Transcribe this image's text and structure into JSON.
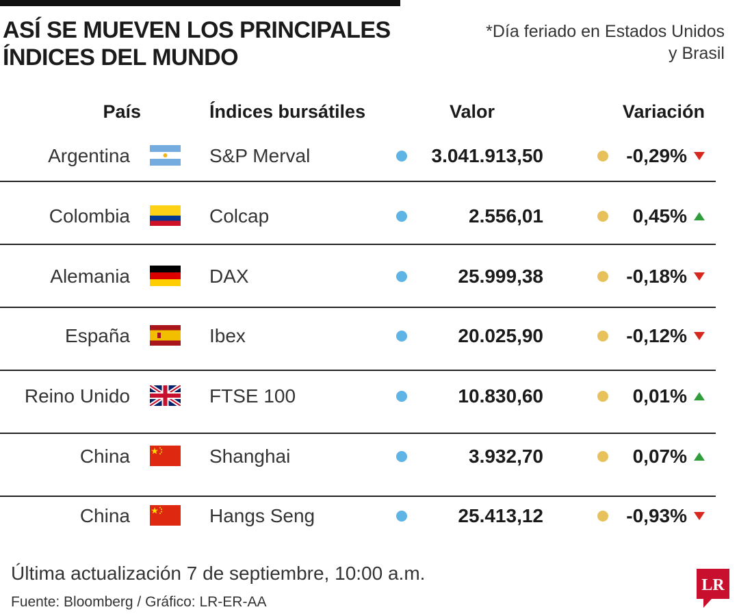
{
  "title": "ASÍ SE MUEVEN LOS PRINCIPALES ÍNDICES DEL MUNDO",
  "note": "*Día feriado en Estados Unidos y Brasil",
  "headers": {
    "country": "País",
    "index": "Índices bursátiles",
    "value": "Valor",
    "variation": "Variación"
  },
  "rows": [
    {
      "country": "Argentina",
      "flag": "argentina-flag",
      "index": "S&P Merval",
      "value": "3.041.913,50",
      "variation": "-0,29%",
      "direction": "down"
    },
    {
      "country": "Colombia",
      "flag": "colombia-flag",
      "index": "Colcap",
      "value": "2.556,01",
      "variation": "0,45%",
      "direction": "up"
    },
    {
      "country": "Alemania",
      "flag": "germany-flag",
      "index": "DAX",
      "value": "25.999,38",
      "variation": "-0,18%",
      "direction": "down"
    },
    {
      "country": "España",
      "flag": "spain-flag",
      "index": "Ibex",
      "value": "20.025,90",
      "variation": "-0,12%",
      "direction": "down"
    },
    {
      "country": "Reino Unido",
      "flag": "uk-flag",
      "index": "FTSE 100",
      "value": "10.830,60",
      "variation": "0,01%",
      "direction": "up"
    },
    {
      "country": "China",
      "flag": "china-flag",
      "index": "Shanghai",
      "value": "3.932,70",
      "variation": "0,07%",
      "direction": "up"
    },
    {
      "country": "China",
      "flag": "china-flag",
      "index": "Hangs Seng",
      "value": "25.413,12",
      "variation": "-0,93%",
      "direction": "down"
    }
  ],
  "footer": {
    "updated": "Última actualización 7 de septiembre, 10:00 a.m.",
    "source": "Fuente: Bloomberg / Gráfico: LR-ER-AA",
    "logo": "LR"
  },
  "colors": {
    "value_dot": "#5fb4e6",
    "variation_dot": "#e7c25c",
    "arrow_down": "#d6281f",
    "arrow_up": "#2f9e3a",
    "logo_red": "#c8102e"
  }
}
